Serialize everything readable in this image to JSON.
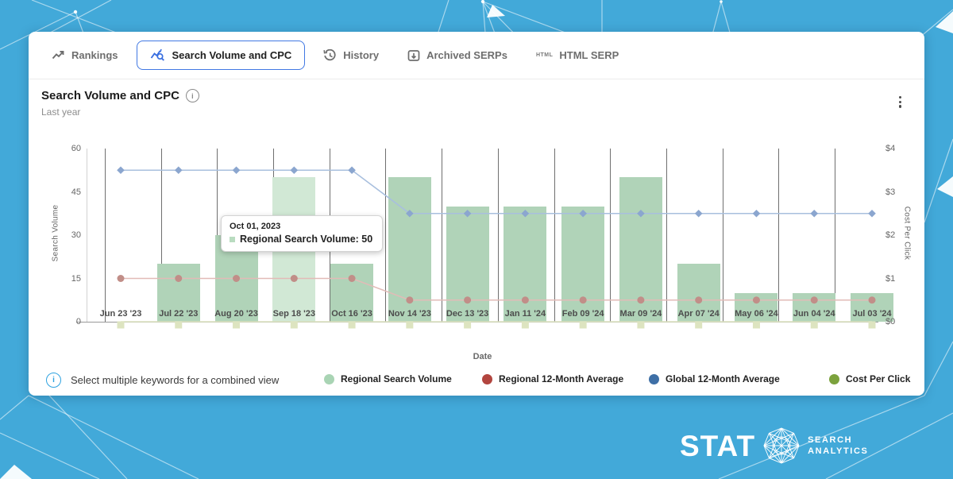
{
  "tabs": [
    {
      "label": "Rankings",
      "active": false
    },
    {
      "label": "Search Volume and CPC",
      "active": true
    },
    {
      "label": "History",
      "active": false
    },
    {
      "label": "Archived SERPs",
      "active": false
    },
    {
      "label": "HTML SERP",
      "active": false,
      "icon_text": "HTML"
    }
  ],
  "chart_header": {
    "title": "Search Volume and CPC",
    "subtitle": "Last year"
  },
  "tooltip": {
    "date": "Oct 01, 2023",
    "text": "Regional Search Volume: 50",
    "bullet_color": "#b9dcc0"
  },
  "footer": {
    "note": "Select multiple keywords for a combined view"
  },
  "legend": [
    {
      "label": "Regional Search Volume",
      "color": "#a9d4b4"
    },
    {
      "label": "Regional 12-Month Average",
      "color": "#b2453f"
    },
    {
      "label": "Global 12-Month Average",
      "color": "#3e6fa6"
    },
    {
      "label": "Cost Per Click",
      "color": "#7ca23d"
    }
  ],
  "logo": {
    "wordmark": "STAT",
    "line1": "SEARCH",
    "line2": "ANALYTICS"
  },
  "chart_data": {
    "type": "bar",
    "categories": [
      "Jun 23 '23",
      "Jul 22 '23",
      "Aug 20 '23",
      "Sep 18 '23",
      "Oct 16 '23",
      "Nov 14 '23",
      "Dec 13 '23",
      "Jan 11 '24",
      "Feb 09 '24",
      "Mar 09 '24",
      "Apr 07 '24",
      "May 06 '24",
      "Jun 04 '24",
      "Jul 03 '24"
    ],
    "xlabel": "Date",
    "left_axis": {
      "label": "Search Volume",
      "ticks": [
        "0",
        "15",
        "30",
        "45",
        "60"
      ],
      "max": 60
    },
    "right_axis": {
      "label": "Cost Per Click",
      "ticks": [
        "$0",
        "$1",
        "$2",
        "$3",
        "$4"
      ],
      "max": 4
    },
    "grid": "vertical",
    "legend_position": "bottom",
    "series": [
      {
        "name": "Regional Search Volume",
        "type": "bar",
        "axis": "left",
        "color": "#b0d3b8",
        "hover_color": "#d1e8d5",
        "hovered_index": 3,
        "values": [
          0,
          20,
          30,
          50,
          20,
          50,
          40,
          40,
          40,
          50,
          20,
          10,
          10,
          10
        ]
      },
      {
        "name": "Regional 12-Month Average",
        "type": "line",
        "axis": "left",
        "line_color": "#e2bbb7",
        "marker_color": "#c18e88",
        "marker": "circle",
        "values": [
          15,
          15,
          15,
          15,
          15,
          7.5,
          7.5,
          7.5,
          7.5,
          7.5,
          7.5,
          7.5,
          7.5,
          7.5
        ]
      },
      {
        "name": "Global 12-Month Average",
        "type": "line",
        "axis": "left",
        "line_color": "#a8bfde",
        "marker_color": "#8ba6cf",
        "marker": "diamond",
        "values": [
          52.5,
          52.5,
          52.5,
          52.5,
          52.5,
          37.5,
          37.5,
          37.5,
          37.5,
          37.5,
          37.5,
          37.5,
          37.5,
          37.5
        ]
      },
      {
        "name": "Cost Per Click",
        "type": "line",
        "axis": "right",
        "line_color": "#dde4c0",
        "marker_color": "#dde4c0",
        "marker": "square",
        "values": [
          0,
          0,
          0,
          0,
          0,
          0,
          0,
          0,
          0,
          0,
          0,
          0,
          0,
          0
        ]
      }
    ]
  }
}
